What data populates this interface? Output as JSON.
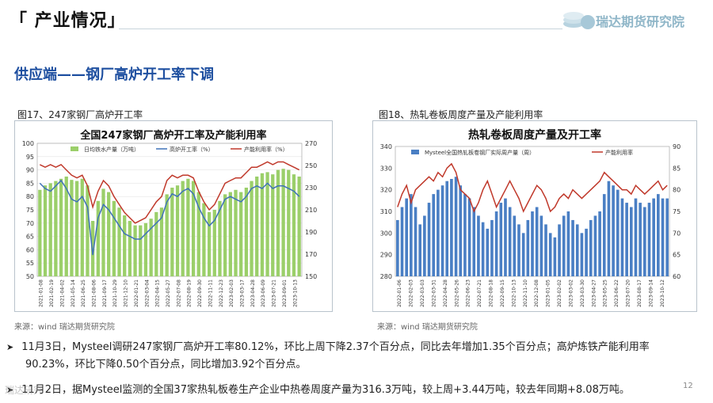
{
  "header": {
    "title": "「 产业情况」",
    "brand": "瑞达期货研究院"
  },
  "section": {
    "title": "供应端——钢厂高炉开工率下调"
  },
  "left_figure": {
    "caption": "图17、247家钢厂高炉开工率",
    "source": "来源：wind    瑞达期货研究院",
    "chart_data": {
      "type": "bar",
      "title": "全国247家钢厂高炉开工率及产能利用率",
      "legend": [
        "日均铁水产量（万吨）",
        "高炉开工率（%）",
        "产能利用率（%）"
      ],
      "left_axis": {
        "ticks": [
          "100",
          "95",
          "90",
          "85",
          "80",
          "75",
          "70",
          "65",
          "60",
          "55",
          "50"
        ],
        "ylim": [
          50,
          100
        ]
      },
      "right_axis": {
        "ticks": [
          "270",
          "250",
          "230",
          "210",
          "190",
          "170",
          "150"
        ],
        "ylim": [
          150,
          270
        ]
      },
      "x_ticks": [
        "2021-01-08",
        "2021-02-19",
        "2021-04-02",
        "2021-05-14",
        "2021-06-25",
        "2021-08-06",
        "2021-09-17",
        "2021-10-29",
        "2021-12-10",
        "2022-01-21",
        "2022-03-04",
        "2022-04-15",
        "2022-05-27",
        "2022-07-08",
        "2022-08-19",
        "2022-09-30",
        "2022-11-11",
        "2022-12-23",
        "2023-02-03",
        "2023-03-17",
        "2023-04-28",
        "2023-06-09",
        "2023-07-21",
        "2023-09-01",
        "2023-10-13"
      ],
      "series": [
        {
          "name": "日均铁水产量（万吨）",
          "axis": "right",
          "color": "#9bcf6a",
          "values": [
            228,
            232,
            234,
            236,
            238,
            240,
            237,
            236,
            238,
            232,
            200,
            218,
            229,
            226,
            218,
            212,
            205,
            200,
            196,
            196,
            198,
            202,
            208,
            212,
            224,
            230,
            232,
            236,
            238,
            236,
            226,
            216,
            208,
            210,
            218,
            224,
            226,
            228,
            226,
            230,
            236,
            240,
            243,
            244,
            242,
            246,
            247,
            246,
            242,
            240
          ]
        },
        {
          "name": "高炉开工率（%）",
          "axis": "left",
          "color": "#3f72b8",
          "values": [
            85,
            83,
            82,
            84,
            86,
            83,
            79,
            78,
            80,
            76,
            58,
            72,
            77,
            75,
            72,
            69,
            66,
            65,
            64,
            64,
            66,
            68,
            70,
            72,
            78,
            81,
            80,
            82,
            83,
            81,
            76,
            72,
            69,
            71,
            75,
            79,
            80,
            79,
            78,
            80,
            83,
            84,
            83,
            85,
            83,
            84,
            84,
            83,
            82,
            80
          ]
        },
        {
          "name": "产能利用率（%）",
          "axis": "left",
          "color": "#c0392b",
          "values": [
            92,
            91,
            92,
            91,
            92,
            90,
            88,
            87,
            88,
            84,
            76,
            82,
            86,
            84,
            80,
            77,
            74,
            72,
            70,
            71,
            72,
            75,
            78,
            80,
            86,
            88,
            87,
            88,
            88,
            87,
            82,
            78,
            75,
            77,
            81,
            85,
            86,
            87,
            87,
            89,
            91,
            91,
            92,
            93,
            92,
            93,
            93,
            92,
            91,
            90
          ]
        }
      ]
    }
  },
  "right_figure": {
    "caption": "图18、热轧卷板周度产量及产能利用率",
    "source": "来源：wind    瑞达期货研究院",
    "chart_data": {
      "type": "bar",
      "title": "热轧卷板周度产量及开工率",
      "legend": [
        "Mysteel全国热轧板卷钢厂实际周产量（周）",
        "产能利用率"
      ],
      "left_axis": {
        "ticks": [
          "340",
          "330",
          "320",
          "310",
          "300",
          "290",
          "280"
        ],
        "ylim": [
          280,
          340
        ]
      },
      "right_axis": {
        "ticks": [
          "90",
          "85",
          "80",
          "75",
          "70",
          "65",
          "60"
        ],
        "ylim": [
          60,
          90
        ]
      },
      "x_ticks": [
        "2022-01-06",
        "2022-02-03",
        "2022-03-03",
        "2022-03-31",
        "2022-04-28",
        "2022-05-26",
        "2022-06-23",
        "2022-07-21",
        "2022-08-18",
        "2022-09-15",
        "2022-10-13",
        "2022-11-10",
        "2022-12-08",
        "2023-01-05",
        "2023-02-02",
        "2023-03-02",
        "2023-03-30",
        "2023-04-27",
        "2023-05-25",
        "2023-06-22",
        "2023-07-20",
        "2023-08-17",
        "2023-09-14",
        "2023-10-12"
      ],
      "series": [
        {
          "name": "Mysteel全国热轧板卷钢厂实际周产量（周）",
          "axis": "left",
          "color": "#4a7fc4",
          "values": [
            306,
            312,
            316,
            318,
            312,
            304,
            308,
            314,
            318,
            320,
            322,
            324,
            325,
            326,
            322,
            318,
            316,
            312,
            308,
            305,
            302,
            306,
            310,
            314,
            316,
            312,
            308,
            304,
            300,
            306,
            310,
            312,
            308,
            304,
            300,
            298,
            304,
            308,
            310,
            306,
            304,
            300,
            302,
            306,
            308,
            310,
            318,
            324,
            322,
            320,
            316,
            314,
            312,
            316,
            314,
            312,
            314,
            316,
            318,
            316,
            316
          ]
        },
        {
          "name": "产能利用率",
          "axis": "right",
          "color": "#c0392b",
          "values": [
            76,
            79,
            81,
            77,
            80,
            81,
            82,
            83,
            82,
            84,
            83,
            85,
            86,
            84,
            80,
            79,
            78,
            75,
            77,
            80,
            82,
            79,
            76,
            78,
            80,
            82,
            80,
            78,
            75,
            77,
            79,
            81,
            80,
            78,
            75,
            76,
            78,
            79,
            78,
            80,
            79,
            78,
            79,
            80,
            81,
            82,
            84,
            83,
            82,
            81,
            80,
            80,
            79,
            81,
            80,
            79,
            80,
            81,
            82,
            80,
            81
          ]
        }
      ]
    }
  },
  "bullets": [
    {
      "line1": "11月3日，Mysteel调研247家钢厂高炉开工率80.12%，环比上周下降2.37个百分点，同比去年增加1.35个百分点；高炉炼铁产能利用率",
      "line2": "90.23%，环比下降0.50个百分点，同比增加3.92个百分点。"
    },
    {
      "line1": "11月2日，据Mysteel监测的全国37家热轧板卷生产企业中热卷周度产量为316.3万吨，较上周+3.44万吨，较去年同期+8.08万吨。"
    }
  ],
  "footer": {
    "watermark": "瑞达研究",
    "page_number": "12"
  },
  "colors": {
    "accent": "#1e4fa0",
    "bar_green": "#9bcf6a",
    "bar_blue": "#4a7fc4",
    "line_red": "#c0392b",
    "line_blue": "#3f72b8"
  },
  "icons": {
    "bullet": "triangle-right-icon"
  }
}
